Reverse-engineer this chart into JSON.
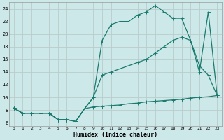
{
  "xlabel": "Humidex (Indice chaleur)",
  "ylabel": "",
  "bg_color": "#cce8e8",
  "grid_color": "#bbcccc",
  "line_color": "#1a7a6e",
  "xlim": [
    -0.5,
    23.5
  ],
  "ylim": [
    5.5,
    25
  ],
  "xticks": [
    0,
    1,
    2,
    3,
    4,
    5,
    6,
    7,
    8,
    9,
    10,
    11,
    12,
    13,
    14,
    15,
    16,
    17,
    18,
    19,
    20,
    21,
    22,
    23
  ],
  "yticks": [
    6,
    8,
    10,
    12,
    14,
    16,
    18,
    20,
    22,
    24
  ],
  "line1_x": [
    0,
    1,
    2,
    3,
    4,
    5,
    6,
    7,
    8,
    9,
    10,
    11,
    12,
    13,
    14,
    15,
    16,
    17,
    18,
    19,
    20,
    21,
    22,
    23
  ],
  "line1_y": [
    8.3,
    7.5,
    7.5,
    7.5,
    7.5,
    6.5,
    6.5,
    6.2,
    8.2,
    8.5,
    8.6,
    8.7,
    8.8,
    9.0,
    9.1,
    9.3,
    9.4,
    9.5,
    9.6,
    9.7,
    9.9,
    10.0,
    10.1,
    10.3
  ],
  "line2_x": [
    0,
    1,
    2,
    3,
    4,
    5,
    6,
    7,
    8,
    9,
    10,
    11,
    12,
    13,
    14,
    15,
    16,
    17,
    18,
    19,
    20,
    21,
    22,
    23
  ],
  "line2_y": [
    8.3,
    7.5,
    7.5,
    7.5,
    7.5,
    6.5,
    6.5,
    6.2,
    8.2,
    10.0,
    19.0,
    21.5,
    22.0,
    22.0,
    23.0,
    23.5,
    24.5,
    23.5,
    22.5,
    22.5,
    19.0,
    14.0,
    23.5,
    10.3
  ],
  "line3_x": [
    0,
    1,
    2,
    3,
    4,
    5,
    6,
    7,
    8,
    9,
    10,
    11,
    12,
    13,
    14,
    15,
    16,
    17,
    18,
    19,
    20,
    21,
    22,
    23
  ],
  "line3_y": [
    8.3,
    7.5,
    7.5,
    7.5,
    7.5,
    6.5,
    6.5,
    6.2,
    8.2,
    10.0,
    13.5,
    14.0,
    14.5,
    15.0,
    15.5,
    16.0,
    17.0,
    18.0,
    19.0,
    19.5,
    19.0,
    15.0,
    13.5,
    10.3
  ]
}
